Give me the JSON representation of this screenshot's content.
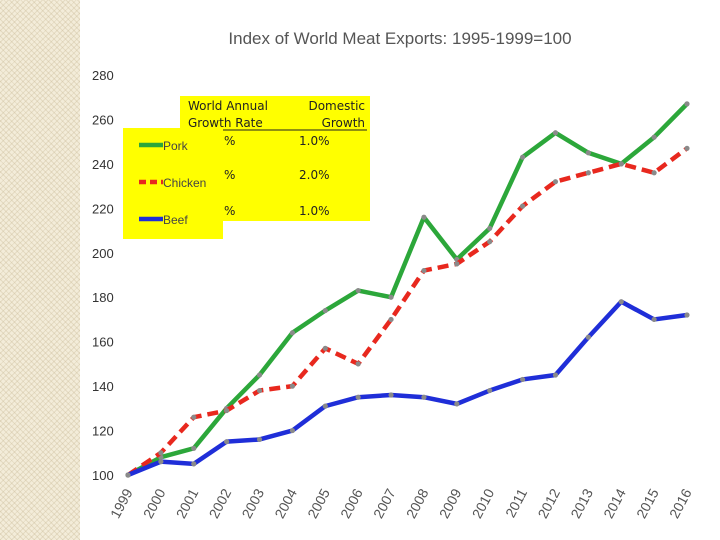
{
  "chart_data": {
    "type": "line",
    "title": "Index of World Meat Exports: 1995-1999=100",
    "xlabel": "",
    "ylabel": "",
    "x": [
      "1999",
      "2000",
      "2001",
      "2002",
      "2003",
      "2004",
      "2005",
      "2006",
      "2007",
      "2008",
      "2009",
      "2010",
      "2011",
      "2012",
      "2013",
      "2014",
      "2015",
      "2016"
    ],
    "ylim": [
      100,
      280
    ],
    "yticks": [
      100,
      120,
      140,
      160,
      180,
      200,
      220,
      240,
      260,
      280
    ],
    "series": [
      {
        "name": "Pork",
        "color": "#2ca73a",
        "dash": "solid",
        "values": [
          100,
          108,
          112,
          130,
          145,
          164,
          174,
          183,
          180,
          216,
          197,
          211,
          243,
          254,
          245,
          240,
          252,
          267
        ]
      },
      {
        "name": "Chicken",
        "color": "#e8281e",
        "dash": "dashed",
        "values": [
          100,
          110,
          126,
          129,
          138,
          140,
          157,
          150,
          170,
          192,
          195,
          205,
          221,
          232,
          236,
          240,
          236,
          247
        ]
      },
      {
        "name": "Beef",
        "color": "#1f2ed8",
        "dash": "solid",
        "values": [
          100,
          106,
          105,
          115,
          116,
          120,
          131,
          135,
          136,
          135,
          132,
          138,
          143,
          145,
          162,
          178,
          170,
          172
        ]
      }
    ],
    "legend": {
      "placement": "top-left",
      "items": [
        "Pork",
        "Chicken",
        "Beef"
      ]
    },
    "grid": false,
    "annotation": {
      "background": "#ffff00",
      "col1_header": [
        "World Annual",
        "Growth Rate"
      ],
      "col2_header": [
        "Domestic",
        "Growth"
      ],
      "rows": [
        {
          "world": "%",
          "domestic": "1.0%"
        },
        {
          "world": "%",
          "domestic": "2.0%"
        },
        {
          "world": "%",
          "domestic": "1.0%"
        }
      ]
    }
  }
}
